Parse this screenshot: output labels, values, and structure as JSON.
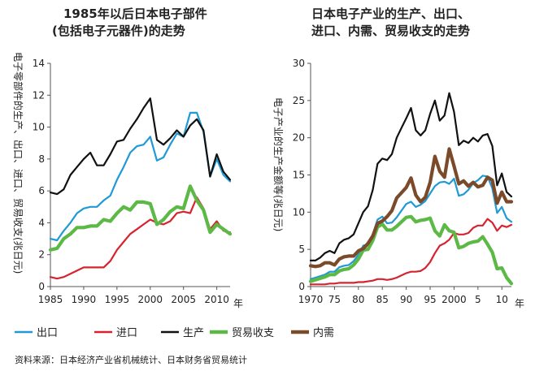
{
  "colors": {
    "export": "#1f9ad6",
    "import": "#d72330",
    "production": "#111111",
    "trade": "#5cb946",
    "domestic": "#7b4a2a"
  },
  "legend": [
    {
      "key": "export",
      "label": "出口"
    },
    {
      "key": "import",
      "label": "进口"
    },
    {
      "key": "production",
      "label": "生产"
    },
    {
      "key": "trade",
      "label": "贸易收支"
    },
    {
      "key": "domestic",
      "label": "内需"
    }
  ],
  "source": "资料来源：日本经济产业省机械统计、日本财务省贸易统计",
  "year_unit": "年",
  "chart_data": [
    {
      "type": "line",
      "title": [
        "1985年以后日本电子部件",
        "(包括电子元器件)的走势"
      ],
      "ylabel": "电子零部件的生产、出口、进口、贸易收支(兆日元)",
      "xlim": [
        1985,
        2012
      ],
      "ylim": [
        0,
        14
      ],
      "xticks": [
        1985,
        1990,
        1995,
        2000,
        2005,
        2010
      ],
      "xtick_labels": [
        "1985",
        "1990",
        "1995",
        "2000",
        "2005",
        "2010"
      ],
      "yticks": [
        0,
        2,
        4,
        6,
        8,
        10,
        12,
        14
      ],
      "x": [
        1985,
        1986,
        1987,
        1988,
        1989,
        1990,
        1991,
        1992,
        1993,
        1994,
        1995,
        1996,
        1997,
        1998,
        1999,
        2000,
        2001,
        2002,
        2003,
        2004,
        2005,
        2006,
        2007,
        2008,
        2009,
        2010,
        2011,
        2012
      ],
      "series": [
        {
          "key": "export",
          "values": [
            3.0,
            2.9,
            3.5,
            4.0,
            4.6,
            4.9,
            5.0,
            5.0,
            5.4,
            5.7,
            6.7,
            7.5,
            8.4,
            8.8,
            8.9,
            9.4,
            7.9,
            8.1,
            8.9,
            9.6,
            9.4,
            10.9,
            10.9,
            9.7,
            6.9,
            8.0,
            7.0,
            6.6
          ]
        },
        {
          "key": "import",
          "values": [
            0.6,
            0.5,
            0.6,
            0.8,
            1.0,
            1.2,
            1.2,
            1.2,
            1.2,
            1.6,
            2.3,
            2.8,
            3.3,
            3.6,
            3.9,
            4.2,
            4.0,
            3.9,
            4.1,
            4.6,
            4.7,
            4.6,
            5.6,
            4.9,
            3.6,
            4.1,
            3.5,
            3.4
          ]
        },
        {
          "key": "production",
          "values": [
            5.9,
            5.8,
            6.1,
            7.0,
            7.5,
            8.0,
            8.4,
            7.6,
            7.6,
            8.3,
            9.1,
            9.2,
            9.9,
            10.5,
            11.2,
            11.8,
            9.2,
            8.9,
            9.3,
            9.8,
            9.4,
            10.1,
            10.5,
            9.8,
            6.9,
            8.3,
            7.2,
            6.7
          ]
        },
        {
          "key": "trade",
          "values": [
            2.3,
            2.4,
            3.0,
            3.3,
            3.7,
            3.7,
            3.8,
            3.8,
            4.2,
            4.1,
            4.6,
            5.0,
            4.8,
            5.3,
            5.3,
            5.2,
            3.9,
            4.2,
            4.7,
            5.0,
            4.9,
            6.3,
            5.4,
            4.8,
            3.4,
            3.9,
            3.6,
            3.3
          ]
        }
      ]
    },
    {
      "type": "line",
      "title": [
        "日本电子产业的生产、出口、",
        "进口、内需、贸易收支的走势"
      ],
      "ylabel": "电子产业的生产金额等(兆日元)",
      "xlim": [
        1970,
        2012
      ],
      "ylim": [
        0,
        30
      ],
      "xticks": [
        1970,
        1975,
        1980,
        1985,
        1990,
        1995,
        2000,
        2005,
        2010
      ],
      "xtick_labels": [
        "1970",
        "75",
        "80",
        "85",
        "90",
        "95",
        "2000",
        "5",
        "10"
      ],
      "yticks": [
        0,
        5,
        10,
        15,
        20,
        25,
        30
      ],
      "x": [
        1970,
        1971,
        1972,
        1973,
        1974,
        1975,
        1976,
        1977,
        1978,
        1979,
        1980,
        1981,
        1982,
        1983,
        1984,
        1985,
        1986,
        1987,
        1988,
        1989,
        1990,
        1991,
        1992,
        1993,
        1994,
        1995,
        1996,
        1997,
        1998,
        1999,
        2000,
        2001,
        2002,
        2003,
        2004,
        2005,
        2006,
        2007,
        2008,
        2009,
        2010,
        2011,
        2012
      ],
      "series": [
        {
          "key": "export",
          "values": [
            1.0,
            1.2,
            1.4,
            1.6,
            2.0,
            2.0,
            2.6,
            2.8,
            2.9,
            3.4,
            4.3,
            5.5,
            5.7,
            7.0,
            9.0,
            9.4,
            8.5,
            8.6,
            9.3,
            10.2,
            11.1,
            11.4,
            10.7,
            11.0,
            11.5,
            12.5,
            13.5,
            14.0,
            14.1,
            13.8,
            14.5,
            12.2,
            12.4,
            13.0,
            13.9,
            14.3,
            14.9,
            14.8,
            13.2,
            9.9,
            10.7,
            9.2,
            8.7
          ]
        },
        {
          "key": "import",
          "values": [
            0.3,
            0.3,
            0.3,
            0.3,
            0.4,
            0.4,
            0.5,
            0.5,
            0.5,
            0.5,
            0.6,
            0.6,
            0.7,
            0.8,
            1.0,
            1.0,
            0.9,
            1.0,
            1.2,
            1.5,
            1.8,
            2.0,
            2.0,
            2.1,
            2.5,
            3.3,
            4.5,
            5.5,
            5.8,
            6.3,
            7.2,
            7.0,
            7.0,
            7.2,
            7.9,
            8.2,
            8.2,
            9.1,
            8.6,
            7.5,
            8.2,
            8.0,
            8.3
          ]
        },
        {
          "key": "production",
          "values": [
            3.5,
            3.5,
            3.9,
            4.5,
            4.8,
            4.5,
            5.8,
            6.3,
            6.5,
            7.0,
            8.5,
            10.0,
            10.8,
            13.0,
            16.5,
            17.2,
            17.0,
            17.8,
            20.0,
            21.3,
            22.6,
            24.0,
            21.0,
            20.3,
            21.0,
            23.2,
            25.0,
            22.3,
            23.0,
            26.0,
            23.5,
            19.0,
            19.6,
            19.3,
            20.0,
            19.5,
            20.3,
            20.5,
            18.9,
            13.6,
            15.2,
            12.7,
            12.1
          ]
        },
        {
          "key": "trade",
          "values": [
            0.7,
            0.9,
            1.1,
            1.3,
            1.6,
            1.6,
            2.1,
            2.3,
            2.4,
            2.9,
            3.7,
            4.9,
            5.0,
            6.2,
            8.0,
            8.4,
            7.6,
            7.6,
            8.1,
            8.7,
            9.3,
            9.4,
            8.7,
            8.9,
            9.0,
            9.2,
            7.5,
            6.8,
            8.3,
            7.5,
            7.3,
            5.2,
            5.4,
            5.8,
            6.0,
            6.1,
            6.7,
            5.7,
            4.6,
            2.4,
            2.5,
            1.2,
            0.4
          ]
        },
        {
          "key": "domestic",
          "values": [
            2.8,
            2.7,
            2.8,
            3.2,
            3.2,
            2.9,
            3.7,
            4.0,
            4.1,
            4.1,
            4.8,
            5.1,
            5.8,
            6.8,
            8.5,
            8.8,
            9.4,
            10.2,
            11.9,
            12.6,
            13.3,
            14.6,
            12.3,
            11.4,
            12.0,
            14.0,
            17.5,
            15.5,
            14.7,
            18.5,
            16.2,
            13.8,
            14.2,
            13.5,
            14.0,
            13.4,
            13.6,
            14.7,
            14.3,
            11.2,
            12.7,
            11.4,
            11.4
          ]
        }
      ]
    }
  ]
}
